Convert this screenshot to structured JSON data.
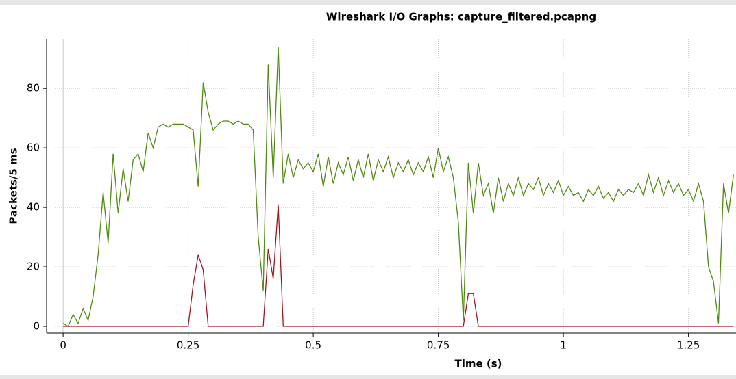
{
  "chart_data": {
    "type": "line",
    "title": "Wireshark I/O Graphs: capture_filtered.pcapng",
    "x_label": "Time (s)",
    "y_label": "Packets/5 ms",
    "x": [
      0,
      0.01,
      0.02,
      0.03,
      0.04,
      0.05,
      0.06,
      0.07,
      0.08,
      0.09,
      0.1,
      0.11,
      0.12,
      0.13,
      0.14,
      0.15,
      0.16,
      0.17,
      0.18,
      0.19,
      0.2,
      0.21,
      0.22,
      0.23,
      0.24,
      0.25,
      0.26,
      0.27,
      0.28,
      0.29,
      0.3,
      0.31,
      0.32,
      0.33,
      0.34,
      0.35,
      0.36,
      0.37,
      0.38,
      0.39,
      0.4,
      0.41,
      0.42,
      0.43,
      0.44,
      0.45,
      0.46,
      0.47,
      0.48,
      0.49,
      0.5,
      0.51,
      0.52,
      0.53,
      0.54,
      0.55,
      0.56,
      0.57,
      0.58,
      0.59,
      0.6,
      0.61,
      0.62,
      0.63,
      0.64,
      0.65,
      0.66,
      0.67,
      0.68,
      0.69,
      0.7,
      0.71,
      0.72,
      0.73,
      0.74,
      0.75,
      0.76,
      0.77,
      0.78,
      0.79,
      0.8,
      0.81,
      0.82,
      0.83,
      0.84,
      0.85,
      0.86,
      0.87,
      0.88,
      0.89,
      0.9,
      0.91,
      0.92,
      0.93,
      0.94,
      0.95,
      0.96,
      0.97,
      0.98,
      0.99,
      1,
      1.01,
      1.02,
      1.03,
      1.04,
      1.05,
      1.06,
      1.07,
      1.08,
      1.09,
      1.1,
      1.11,
      1.12,
      1.13,
      1.14,
      1.15,
      1.16,
      1.17,
      1.18,
      1.19,
      1.2,
      1.21,
      1.22,
      1.23,
      1.24,
      1.25,
      1.26,
      1.27,
      1.28,
      1.29,
      1.3,
      1.31,
      1.32,
      1.33,
      1.34
    ],
    "series": [
      {
        "color": "#4f8a10",
        "values": [
          1,
          0,
          4,
          1,
          6,
          2,
          10,
          24,
          45,
          28,
          58,
          38,
          53,
          42,
          56,
          58,
          52,
          65,
          60,
          67,
          68,
          67,
          68,
          68,
          68,
          67,
          66,
          47,
          82,
          72,
          66,
          68,
          69,
          69,
          68,
          69,
          68,
          68,
          66,
          30,
          12,
          88,
          50,
          94,
          48,
          58,
          50,
          56,
          53,
          55,
          52,
          58,
          47,
          57,
          48,
          55,
          51,
          57,
          49,
          56,
          50,
          58,
          49,
          56,
          52,
          57,
          50,
          55,
          52,
          56,
          51,
          55,
          52,
          57,
          50,
          60,
          52,
          57,
          50,
          35,
          2,
          55,
          38,
          55,
          44,
          48,
          38,
          50,
          42,
          48,
          44,
          50,
          44,
          48,
          46,
          50,
          44,
          48,
          45,
          49,
          44,
          47,
          44,
          45,
          42,
          46,
          44,
          47,
          43,
          45,
          42,
          46,
          44,
          46,
          45,
          48,
          44,
          51,
          45,
          50,
          44,
          49,
          45,
          48,
          44,
          46,
          42,
          48,
          42,
          20,
          15,
          1,
          48,
          38,
          51
        ]
      },
      {
        "color": "#a01420",
        "values": [
          0,
          0,
          0,
          0,
          0,
          0,
          0,
          0,
          0,
          0,
          0,
          0,
          0,
          0,
          0,
          0,
          0,
          0,
          0,
          0,
          0,
          0,
          0,
          0,
          0,
          0,
          14,
          24,
          19,
          0,
          0,
          0,
          0,
          0,
          0,
          0,
          0,
          0,
          0,
          0,
          0,
          26,
          16,
          41,
          0,
          0,
          0,
          0,
          0,
          0,
          0,
          0,
          0,
          0,
          0,
          0,
          0,
          0,
          0,
          0,
          0,
          0,
          0,
          0,
          0,
          0,
          0,
          0,
          0,
          0,
          0,
          0,
          0,
          0,
          0,
          0,
          0,
          0,
          0,
          0,
          0,
          11,
          11,
          0,
          0,
          0,
          0,
          0,
          0,
          0,
          0,
          0,
          0,
          0,
          0,
          0,
          0,
          0,
          0,
          0,
          0,
          0,
          0,
          0,
          0,
          0,
          0,
          0,
          0,
          0,
          0,
          0,
          0,
          0,
          0,
          0,
          0,
          0,
          0,
          0,
          0,
          0,
          0,
          0,
          0,
          0,
          0,
          0,
          0,
          0,
          0,
          0,
          0,
          0,
          0
        ]
      }
    ],
    "xlim": [
      -0.033,
      1.345
    ],
    "ylim": [
      -2.3,
      96.6
    ],
    "xticks": [
      0,
      0.25,
      0.5,
      0.75,
      1,
      1.25
    ],
    "yticks": [
      0,
      20,
      40,
      60,
      80
    ],
    "grid": true
  }
}
